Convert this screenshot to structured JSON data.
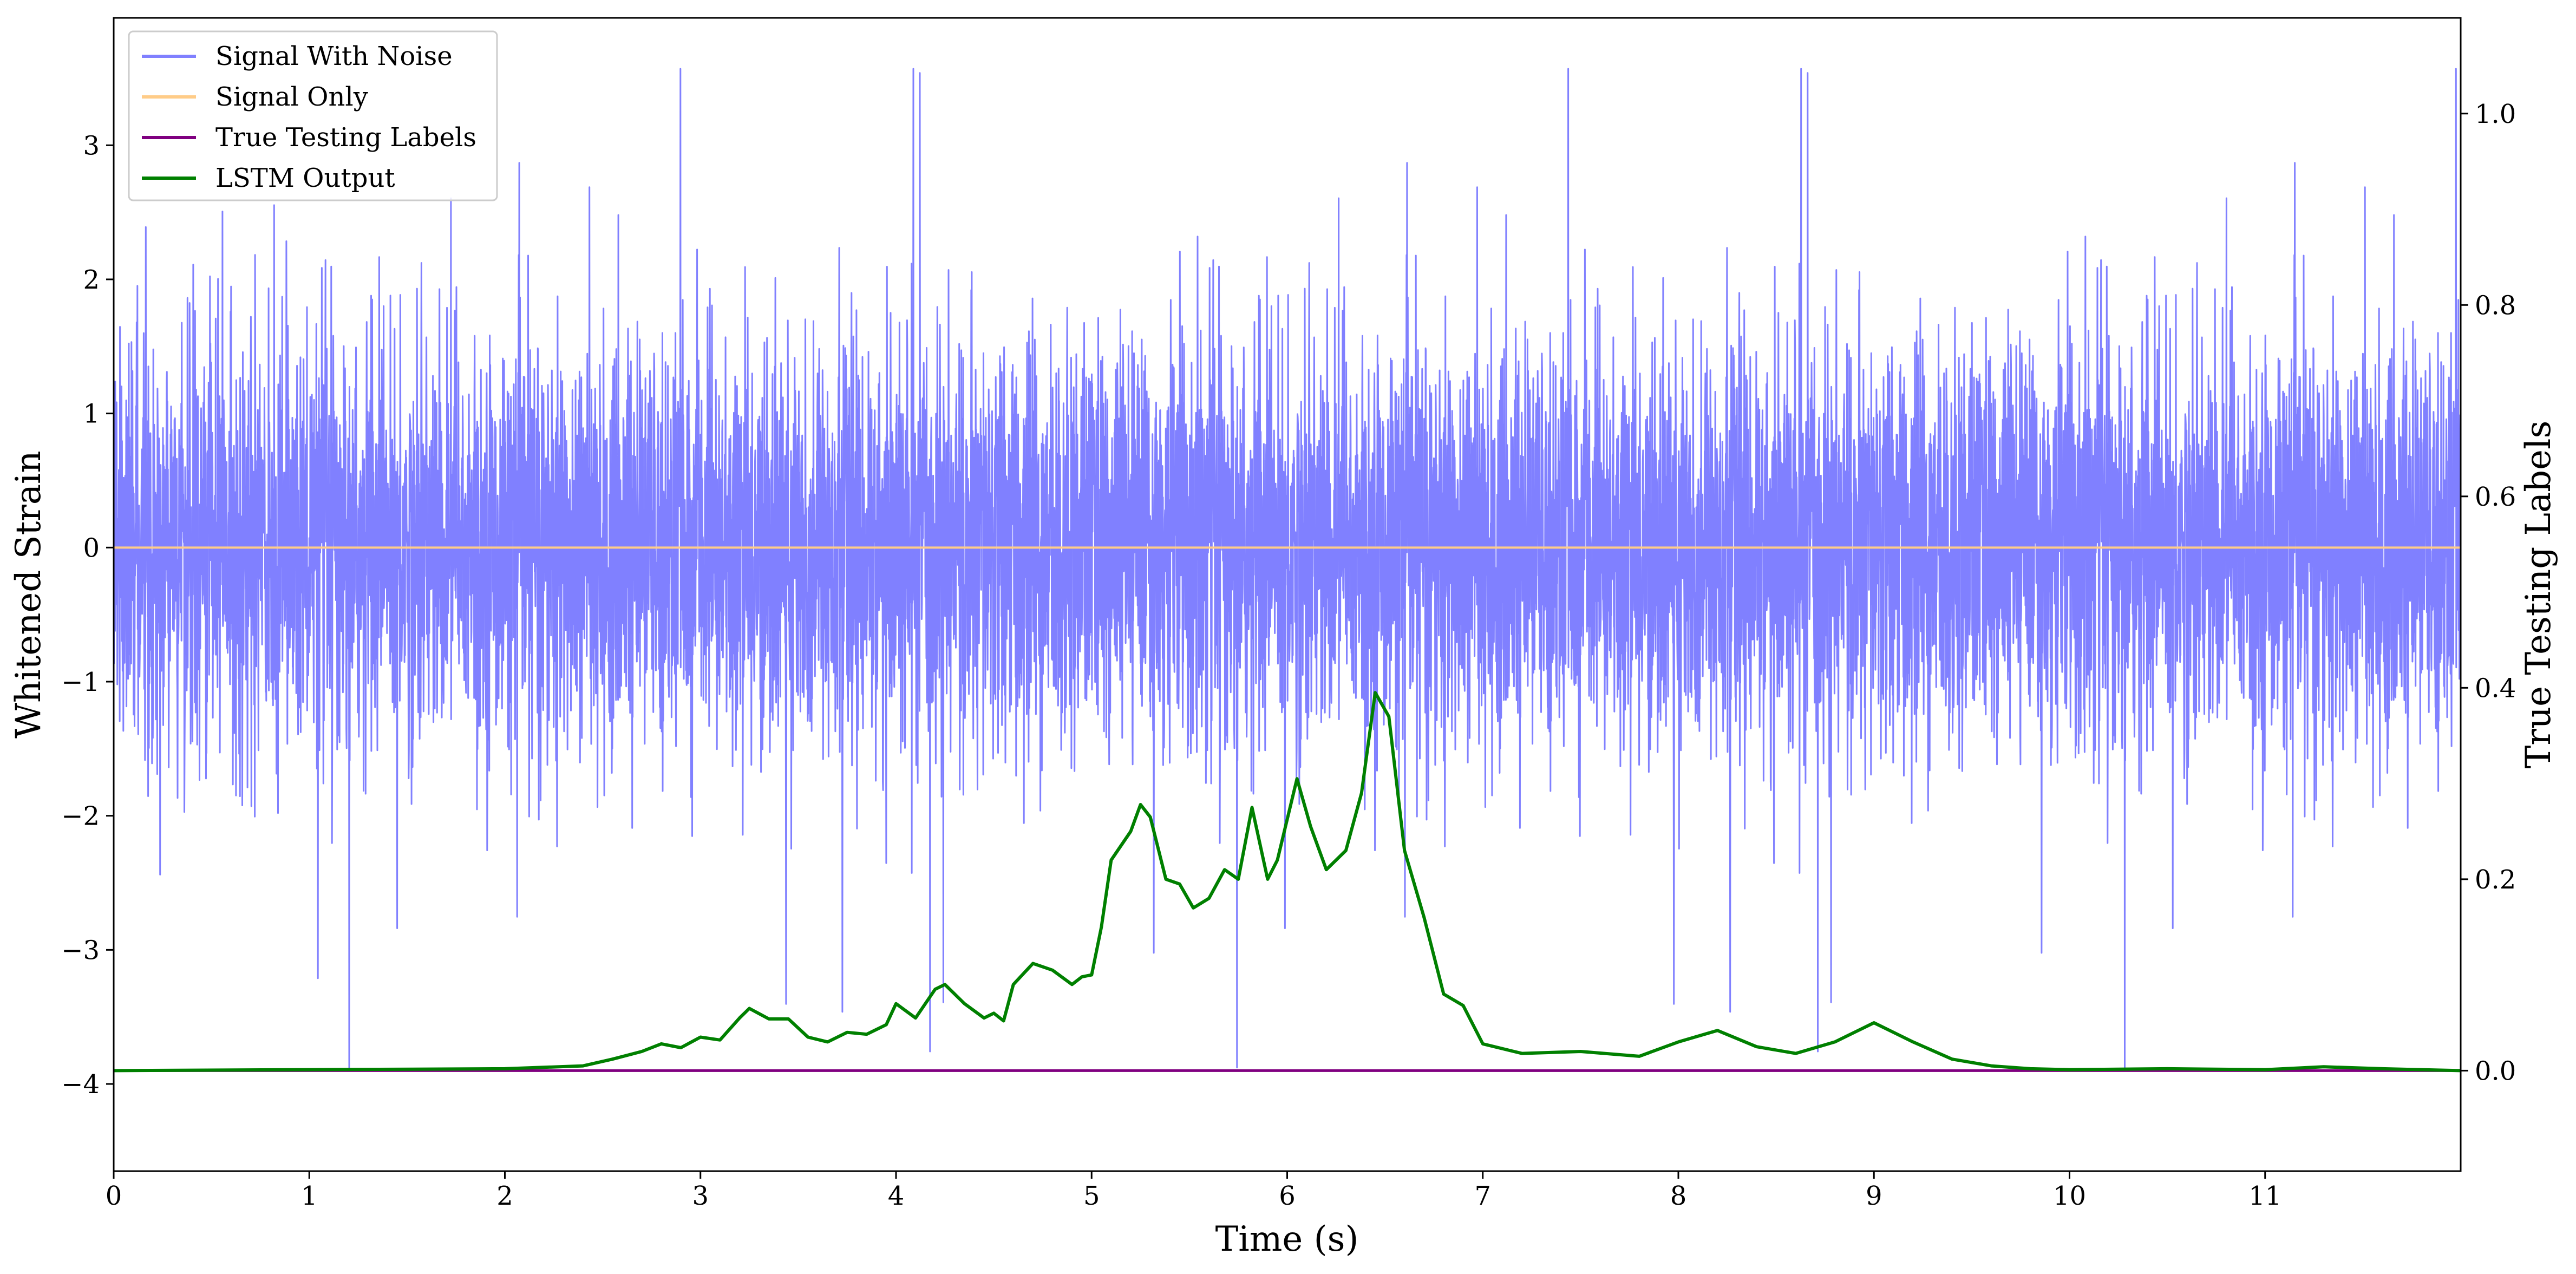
{
  "chart_data": {
    "type": "line",
    "title": "",
    "xlabel": "Time (s)",
    "ylabel": "Whitened Strain",
    "ylabel_right": "True Testing Labels",
    "xlim": [
      0,
      12
    ],
    "ylim": [
      -4.65,
      3.95
    ],
    "ylim_right": [
      -0.105,
      1.1
    ],
    "x_ticks": [
      "0",
      "1",
      "2",
      "3",
      "4",
      "5",
      "6",
      "7",
      "8",
      "9",
      "10",
      "11"
    ],
    "x_tick_values": [
      0,
      1,
      2,
      3,
      4,
      5,
      6,
      7,
      8,
      9,
      10,
      11
    ],
    "y_ticks": [
      "−4",
      "−3",
      "−2",
      "−1",
      "0",
      "1",
      "2",
      "3"
    ],
    "y_tick_values": [
      -4,
      -3,
      -2,
      -1,
      0,
      1,
      2,
      3
    ],
    "y_ticks_right": [
      "0.0",
      "0.2",
      "0.4",
      "0.6",
      "0.8",
      "1.0"
    ],
    "y_tick_values_right": [
      0.0,
      0.2,
      0.4,
      0.6,
      0.8,
      1.0
    ],
    "grid": false,
    "legend_position": "top-left",
    "legend": [
      "Signal With Noise",
      "Signal Only",
      "True Testing Labels",
      "LSTM Output"
    ],
    "colors": {
      "signal_with_noise": "#8080ff",
      "signal_only": "#ffcc88",
      "true_labels": "#800080",
      "lstm_output": "#008000"
    },
    "series": [
      {
        "name": "Signal With Noise",
        "axis": "left",
        "style": "dense noise",
        "approx_range": [
          -4.27,
          3.57
        ],
        "approx_std": 0.75
      },
      {
        "name": "Signal Only",
        "axis": "left",
        "x": [
          0,
          12
        ],
        "y": [
          0,
          0
        ]
      },
      {
        "name": "True Testing Labels",
        "axis": "right",
        "x": [
          0,
          12
        ],
        "y": [
          0,
          0
        ]
      },
      {
        "name": "LSTM Output",
        "axis": "right",
        "x": [
          0,
          1,
          2,
          2.4,
          2.55,
          2.7,
          2.8,
          2.9,
          3.0,
          3.1,
          3.2,
          3.25,
          3.35,
          3.45,
          3.55,
          3.65,
          3.75,
          3.85,
          3.95,
          4.0,
          4.1,
          4.2,
          4.25,
          4.35,
          4.45,
          4.5,
          4.55,
          4.6,
          4.7,
          4.8,
          4.9,
          4.95,
          5.0,
          5.05,
          5.1,
          5.2,
          5.25,
          5.3,
          5.38,
          5.45,
          5.52,
          5.6,
          5.68,
          5.75,
          5.82,
          5.9,
          5.95,
          6.05,
          6.12,
          6.2,
          6.3,
          6.38,
          6.45,
          6.52,
          6.6,
          6.7,
          6.8,
          6.9,
          7.0,
          7.2,
          7.5,
          7.8,
          8.0,
          8.2,
          8.4,
          8.6,
          8.8,
          9.0,
          9.1,
          9.2,
          9.4,
          9.6,
          9.8,
          10.0,
          10.5,
          11.0,
          11.3,
          11.6,
          12.0
        ],
        "y": [
          0.0,
          0.001,
          0.002,
          0.005,
          0.012,
          0.02,
          0.028,
          0.024,
          0.035,
          0.032,
          0.055,
          0.065,
          0.054,
          0.054,
          0.035,
          0.03,
          0.04,
          0.038,
          0.048,
          0.07,
          0.055,
          0.085,
          0.09,
          0.07,
          0.055,
          0.06,
          0.052,
          0.09,
          0.112,
          0.105,
          0.09,
          0.098,
          0.1,
          0.15,
          0.22,
          0.25,
          0.278,
          0.265,
          0.2,
          0.195,
          0.17,
          0.18,
          0.21,
          0.2,
          0.275,
          0.2,
          0.22,
          0.305,
          0.255,
          0.21,
          0.23,
          0.29,
          0.395,
          0.37,
          0.23,
          0.16,
          0.08,
          0.068,
          0.028,
          0.018,
          0.02,
          0.015,
          0.03,
          0.042,
          0.025,
          0.018,
          0.03,
          0.05,
          0.04,
          0.03,
          0.012,
          0.005,
          0.002,
          0.001,
          0.002,
          0.001,
          0.004,
          0.002,
          0.0
        ]
      }
    ]
  }
}
